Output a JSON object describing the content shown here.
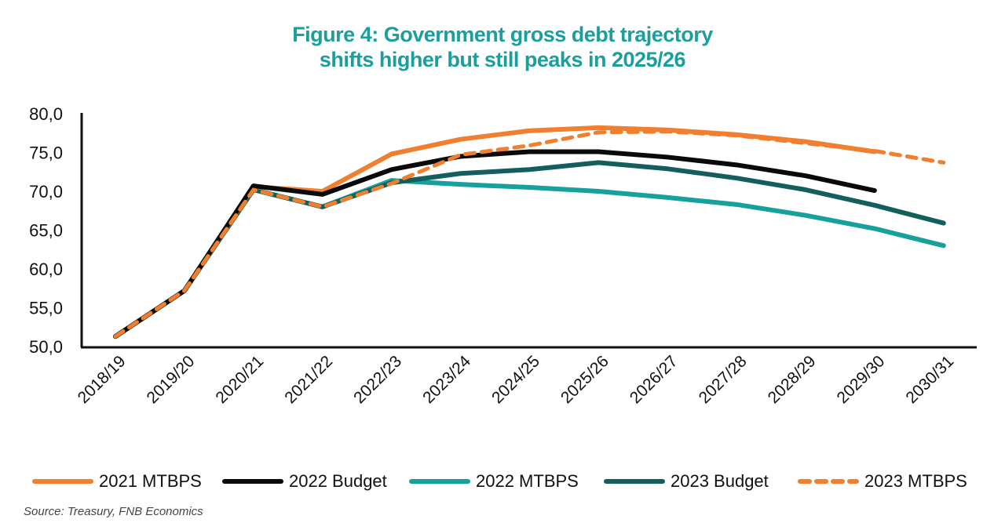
{
  "title_line1": "Figure 4: Government gross debt trajectory",
  "title_line2": "shifts higher but still peaks in 2025/26",
  "source": "Source: Treasury, FNB Economics",
  "chart_data": {
    "type": "line",
    "title": "Figure 4: Government gross debt trajectory shifts higher but still peaks in 2025/26",
    "xlabel": "",
    "ylabel": "",
    "ylim": [
      50,
      80
    ],
    "yticks": [
      "50,0",
      "55,0",
      "60,0",
      "65,0",
      "70,0",
      "75,0",
      "80,0"
    ],
    "ytick_values": [
      50,
      55,
      60,
      65,
      70,
      75,
      80
    ],
    "grid": false,
    "legend_position": "bottom",
    "categories": [
      "2018/19",
      "2019/20",
      "2020/21",
      "2021/22",
      "2022/23",
      "2023/24",
      "2024/25",
      "2025/26",
      "2026/27",
      "2027/28",
      "2028/29",
      "2029/30",
      "2030/31"
    ],
    "series": [
      {
        "name": "2021 MTBPS",
        "color": "#f08030",
        "dashed": false,
        "values": [
          51.3,
          57.2,
          70.6,
          70.0,
          74.8,
          76.7,
          77.8,
          78.2,
          77.9,
          77.3,
          76.4,
          75.1,
          null
        ]
      },
      {
        "name": "2022 Budget",
        "color": "#0a0a0a",
        "dashed": false,
        "values": [
          51.3,
          57.2,
          70.7,
          69.6,
          72.8,
          74.5,
          75.1,
          75.1,
          74.4,
          73.4,
          72.0,
          70.1,
          null
        ]
      },
      {
        "name": "2022 MTBPS",
        "color": "#17a09c",
        "dashed": false,
        "values": [
          51.3,
          57.2,
          70.2,
          68.0,
          71.4,
          70.9,
          70.5,
          70.0,
          69.2,
          68.3,
          66.9,
          65.2,
          63.0
        ]
      },
      {
        "name": "2023 Budget",
        "color": "#125f5e",
        "dashed": false,
        "values": [
          51.3,
          57.2,
          70.2,
          68.0,
          71.1,
          72.3,
          72.8,
          73.7,
          72.9,
          71.7,
          70.2,
          68.2,
          65.9
        ]
      },
      {
        "name": "2023 MTBPS",
        "color": "#f08030",
        "dashed": true,
        "values": [
          51.3,
          57.2,
          70.2,
          68.0,
          71.0,
          74.7,
          75.9,
          77.6,
          77.7,
          77.2,
          null,
          75.2,
          73.7
        ]
      }
    ]
  }
}
